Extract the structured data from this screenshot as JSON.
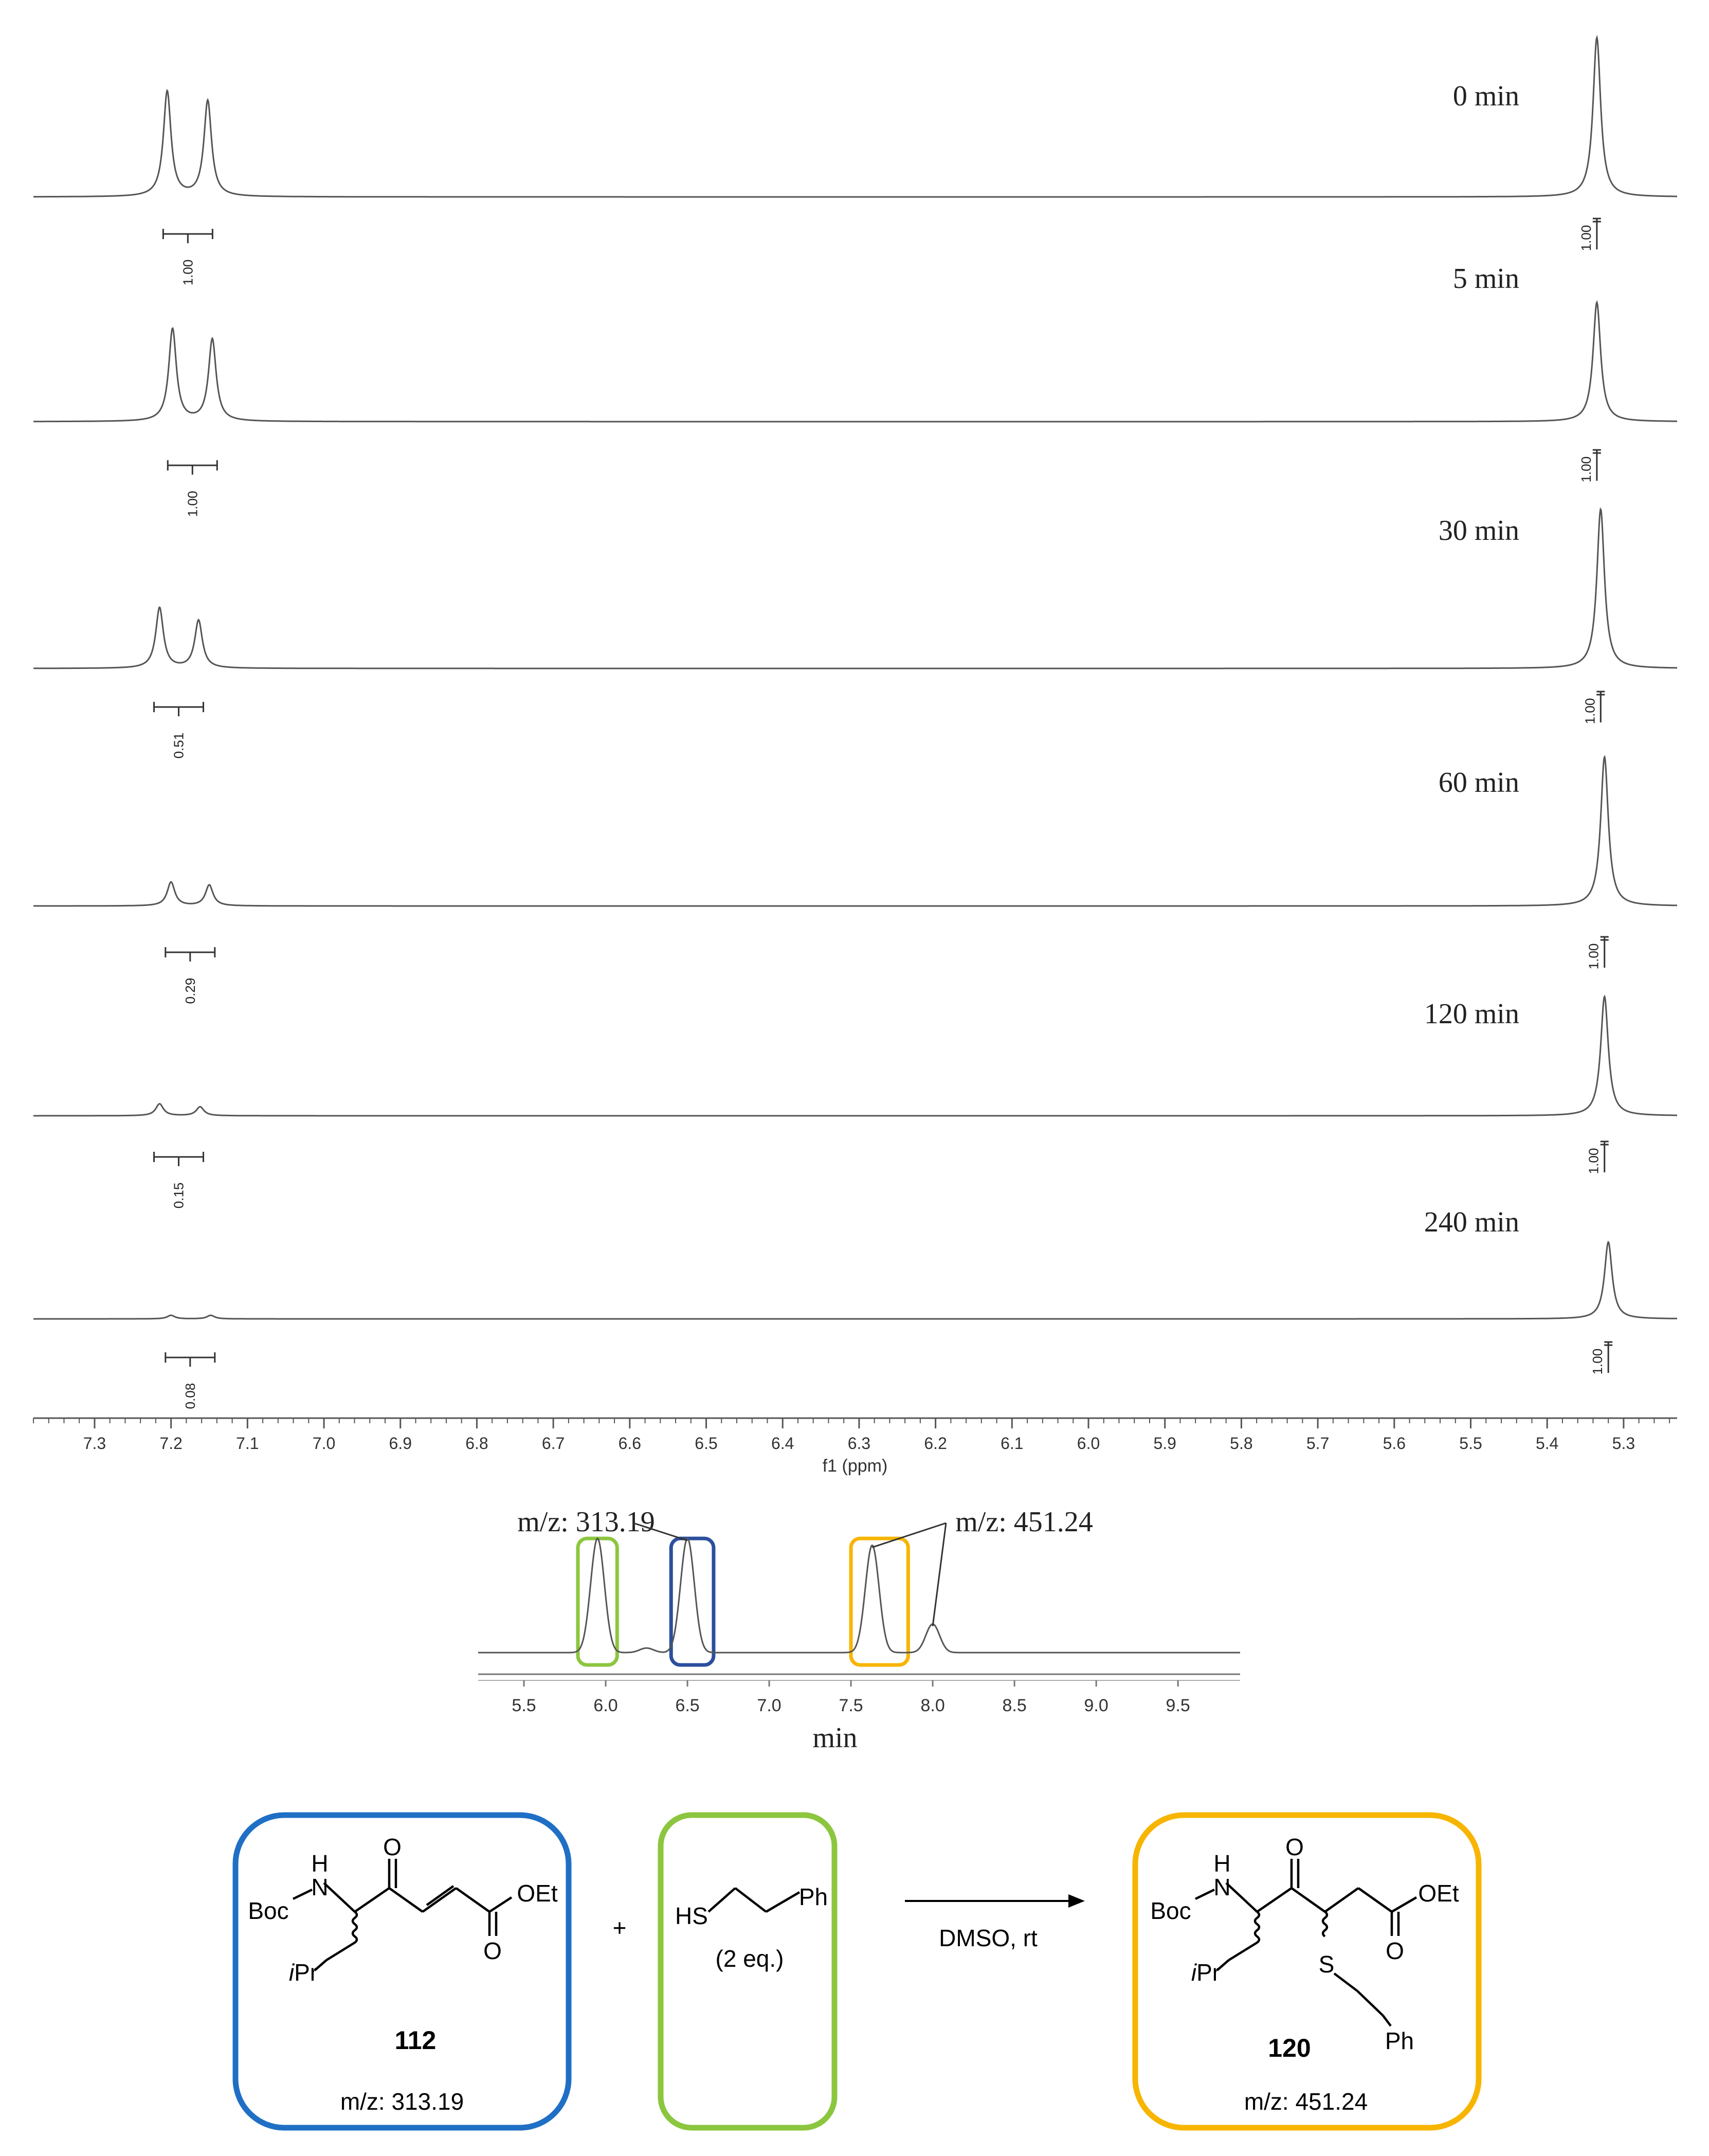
{
  "chart_data": [
    {
      "type": "line",
      "chart": "stacked 1H NMR spectra",
      "xlabel": "f1 (ppm)",
      "x_ticks": [
        7.3,
        7.2,
        7.1,
        7.0,
        6.9,
        6.8,
        6.7,
        6.6,
        6.5,
        6.4,
        6.3,
        6.2,
        6.1,
        6.0,
        5.9,
        5.8,
        5.7,
        5.6,
        5.5,
        5.4,
        5.3
      ],
      "x_tick_labels": [
        "7.3",
        "7.2",
        "7.1",
        "7.0",
        "6.9",
        "6.8",
        "6.7",
        "6.6",
        "6.5",
        "6.4",
        "6.3",
        "6.2",
        "6.1",
        "6.0",
        "5.9",
        "5.8",
        "5.7",
        "5.6",
        "5.5",
        "5.4",
        "5.3"
      ],
      "xlim": [
        7.38,
        5.23
      ],
      "x_reversed": true,
      "series": [
        {
          "name": "0 min",
          "peaks": [
            {
              "x": 7.205,
              "h": 0.66
            },
            {
              "x": 7.152,
              "h": 0.6
            },
            {
              "x": 5.335,
              "h": 1.0
            }
          ],
          "integrals": [
            {
              "x": 7.178,
              "label": "1.00"
            },
            {
              "x": 5.335,
              "label": "1.00"
            }
          ]
        },
        {
          "name": "5 min",
          "peaks": [
            {
              "x": 7.198,
              "h": 0.62
            },
            {
              "x": 7.146,
              "h": 0.55
            },
            {
              "x": 5.335,
              "h": 0.8
            }
          ],
          "integrals": [
            {
              "x": 7.172,
              "label": "1.00"
            },
            {
              "x": 5.335,
              "label": "1.00"
            }
          ]
        },
        {
          "name": "30 min",
          "peaks": [
            {
              "x": 7.215,
              "h": 0.38
            },
            {
              "x": 7.164,
              "h": 0.3
            },
            {
              "x": 5.33,
              "h": 1.0
            }
          ],
          "integrals": [
            {
              "x": 7.19,
              "label": "0.51"
            },
            {
              "x": 5.33,
              "label": "1.00"
            }
          ]
        },
        {
          "name": "60 min",
          "peaks": [
            {
              "x": 7.2,
              "h": 0.16
            },
            {
              "x": 7.15,
              "h": 0.14
            },
            {
              "x": 5.325,
              "h": 1.0
            }
          ],
          "integrals": [
            {
              "x": 7.175,
              "label": "0.29"
            },
            {
              "x": 5.325,
              "label": "1.00"
            }
          ]
        },
        {
          "name": "120 min",
          "peaks": [
            {
              "x": 7.215,
              "h": 0.08
            },
            {
              "x": 7.162,
              "h": 0.06
            },
            {
              "x": 5.325,
              "h": 0.8
            }
          ],
          "integrals": [
            {
              "x": 7.19,
              "label": "0.15"
            },
            {
              "x": 5.325,
              "label": "1.00"
            }
          ]
        },
        {
          "name": "240 min",
          "peaks": [
            {
              "x": 7.2,
              "h": 0.03
            },
            {
              "x": 7.148,
              "h": 0.03
            },
            {
              "x": 5.32,
              "h": 0.65
            }
          ],
          "integrals": [
            {
              "x": 7.175,
              "label": "0.08"
            },
            {
              "x": 5.32,
              "label": "1.00"
            }
          ]
        }
      ]
    },
    {
      "type": "line",
      "chart": "LC trace",
      "xlabel": "min",
      "x_ticks": [
        5.5,
        6.0,
        6.5,
        7.0,
        7.5,
        8.0,
        8.5,
        9.0,
        9.5
      ],
      "x_tick_labels": [
        "5.5",
        "6.0",
        "6.5",
        "7.0",
        "7.5",
        "8.0",
        "8.5",
        "9.0",
        "9.5"
      ],
      "xlim": [
        5.22,
        9.88
      ],
      "peaks": [
        {
          "x": 5.95,
          "h": 1.0
        },
        {
          "x": 6.25,
          "h": 0.04
        },
        {
          "x": 6.5,
          "h": 1.0
        },
        {
          "x": 7.63,
          "h": 0.94
        },
        {
          "x": 8.0,
          "h": 0.25
        }
      ],
      "annotations": [
        {
          "text": "m/z: 313.19",
          "points_to": [
            6.5
          ]
        },
        {
          "text": "m/z: 451.24",
          "points_to": [
            7.63,
            8.0
          ]
        }
      ],
      "highlight_boxes": [
        {
          "range": [
            5.83,
            6.07
          ],
          "color": "#8cc63f"
        },
        {
          "range": [
            6.4,
            6.66
          ],
          "color": "#2b4f9e"
        },
        {
          "range": [
            7.5,
            7.85
          ],
          "color": "#f7b500"
        }
      ]
    }
  ],
  "scheme": {
    "compound_112": {
      "number": "112",
      "mz": "m/z: 313.19",
      "color": "#1f6fc5",
      "groups": {
        "boc": "Boc",
        "nh": "N",
        "h": "H",
        "o_ketone": "O",
        "oet": "OEt",
        "o_ester": "O",
        "ipr_i": "i",
        "ipr_pr": "Pr"
      }
    },
    "plus": "+",
    "thiol": {
      "hs": "HS",
      "ph": "Ph",
      "equiv": "(2 eq.)",
      "color": "#8cc63f"
    },
    "conditions": "DMSO, rt",
    "compound_120": {
      "number": "120",
      "mz": "m/z: 451.24",
      "color": "#f7b500",
      "groups": {
        "boc": "Boc",
        "nh": "N",
        "h": "H",
        "o_ketone": "O",
        "oet": "OEt",
        "o_ester": "O",
        "s": "S",
        "ph": "Ph",
        "ipr_i": "i",
        "ipr_pr": "Pr"
      }
    }
  }
}
